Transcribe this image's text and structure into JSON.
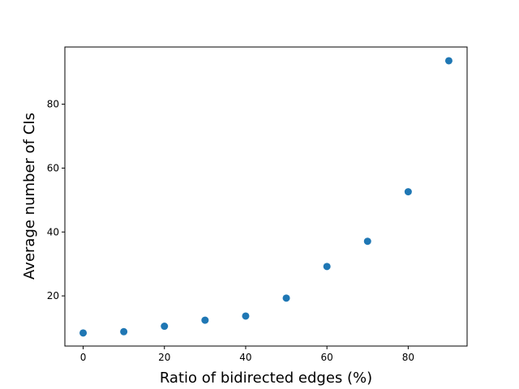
{
  "chart_data": {
    "type": "scatter",
    "xlabel": "Ratio of bidirected edges (%)",
    "ylabel": "Average number of CIs",
    "xlim": [
      -4.5,
      94.5
    ],
    "ylim": [
      4.3,
      97.9
    ],
    "xticks": [
      0,
      20,
      40,
      60,
      80
    ],
    "yticks": [
      20,
      40,
      60,
      80
    ],
    "grid": false,
    "legend": "none",
    "marker_color": "#1f77b4",
    "x": [
      0,
      10,
      20,
      30,
      40,
      50,
      60,
      70,
      80,
      90
    ],
    "y": [
      8.4,
      8.8,
      10.5,
      12.4,
      13.7,
      19.3,
      29.2,
      37.1,
      52.6,
      93.6
    ]
  }
}
